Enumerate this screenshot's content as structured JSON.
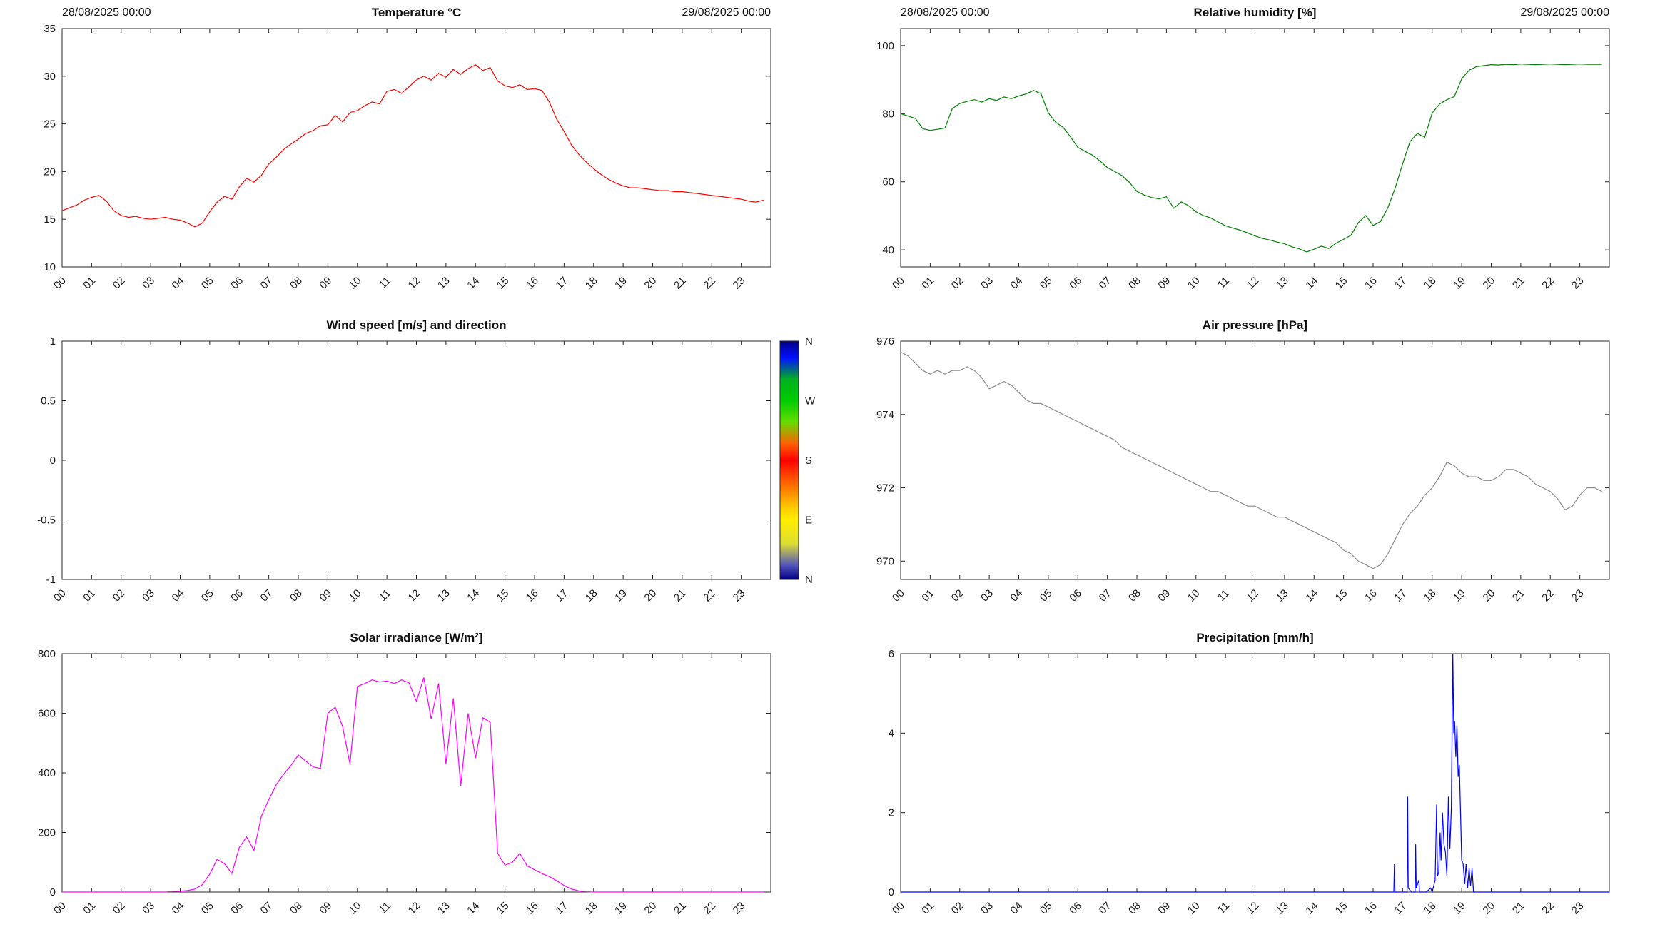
{
  "x_axis": {
    "ticks": [
      0,
      1,
      2,
      3,
      4,
      5,
      6,
      7,
      8,
      9,
      10,
      11,
      12,
      13,
      14,
      15,
      16,
      17,
      18,
      19,
      20,
      21,
      22,
      23
    ],
    "labels": [
      "00",
      "01",
      "02",
      "03",
      "04",
      "05",
      "06",
      "07",
      "08",
      "09",
      "10",
      "11",
      "12",
      "13",
      "14",
      "15",
      "16",
      "17",
      "18",
      "19",
      "20",
      "21",
      "22",
      "23"
    ]
  },
  "chart_data": [
    {
      "id": "temperature",
      "type": "line",
      "title": "Temperature °C",
      "date_left": "28/08/2025 00:00",
      "date_right": "29/08/2025 00:00",
      "color": "#ff0000",
      "xlim": [
        0,
        24
      ],
      "ylim": [
        10,
        35
      ],
      "yticks": [
        10,
        15,
        20,
        25,
        30,
        35
      ],
      "ytick_labels": [
        "10",
        "15",
        "20",
        "25",
        "30",
        "35"
      ],
      "x_start": 0,
      "x_step": 0.25,
      "values": [
        15.9,
        16.2,
        16.5,
        17.0,
        17.3,
        17.5,
        16.9,
        15.9,
        15.4,
        15.2,
        15.3,
        15.1,
        15.0,
        15.1,
        15.2,
        15.0,
        14.9,
        14.6,
        14.2,
        14.6,
        15.8,
        16.8,
        17.4,
        17.1,
        18.4,
        19.3,
        18.9,
        19.6,
        20.8,
        21.5,
        22.3,
        22.9,
        23.4,
        24.0,
        24.3,
        24.8,
        24.9,
        25.9,
        25.2,
        26.2,
        26.4,
        26.9,
        27.3,
        27.1,
        28.4,
        28.6,
        28.2,
        28.9,
        29.6,
        30.0,
        29.6,
        30.3,
        29.9,
        30.7,
        30.2,
        30.8,
        31.2,
        30.6,
        30.9,
        29.5,
        29.0,
        28.8,
        29.1,
        28.6,
        28.7,
        28.5,
        27.3,
        25.5,
        24.2,
        22.8,
        21.8,
        21.0,
        20.3,
        19.7,
        19.2,
        18.8,
        18.5,
        18.3,
        18.3,
        18.2,
        18.1,
        18.0,
        18.0,
        17.9,
        17.9,
        17.8,
        17.7,
        17.6,
        17.5,
        17.4,
        17.3,
        17.2,
        17.1,
        16.9,
        16.8,
        17.0
      ]
    },
    {
      "id": "humidity",
      "type": "line",
      "title": "Relative humidity [%]",
      "date_left": "28/08/2025 00:00",
      "date_right": "29/08/2025 00:00",
      "color": "#008000",
      "xlim": [
        0,
        24
      ],
      "ylim": [
        35,
        105
      ],
      "yticks": [
        40,
        60,
        80,
        100
      ],
      "ytick_labels": [
        "40",
        "60",
        "80",
        "100"
      ],
      "x_start": 0,
      "x_step": 0.25,
      "values": [
        80.0,
        79.3,
        78.6,
        75.6,
        75.1,
        75.4,
        75.8,
        81.5,
        83.0,
        83.6,
        84.1,
        83.4,
        84.4,
        83.9,
        84.9,
        84.4,
        85.2,
        85.8,
        86.8,
        85.9,
        80.2,
        77.5,
        76.0,
        73.2,
        70.1,
        68.9,
        67.8,
        66.1,
        64.2,
        63.0,
        61.8,
        59.8,
        57.2,
        56.1,
        55.4,
        55.0,
        55.6,
        52.2,
        54.1,
        53.0,
        51.2,
        50.1,
        49.4,
        48.2,
        47.1,
        46.4,
        45.8,
        45.0,
        44.1,
        43.4,
        42.9,
        42.3,
        41.8,
        40.9,
        40.3,
        39.4,
        40.2,
        41.1,
        40.4,
        42.0,
        43.1,
        44.3,
        48.0,
        50.1,
        47.2,
        48.3,
        52.4,
        58.2,
        65.3,
        71.8,
        74.2,
        73.1,
        80.2,
        82.8,
        84.1,
        85.0,
        90.2,
        92.8,
        93.8,
        94.1,
        94.4,
        94.3,
        94.5,
        94.4,
        94.6,
        94.5,
        94.4,
        94.5,
        94.6,
        94.5,
        94.4,
        94.5,
        94.6,
        94.5,
        94.5,
        94.5
      ]
    },
    {
      "id": "wind",
      "type": "line",
      "title": "Wind speed [m/s] and direction",
      "color": "#0000ff",
      "xlim": [
        0,
        24
      ],
      "ylim": [
        -1,
        1
      ],
      "yticks": [
        -1,
        -0.5,
        0,
        0.5,
        1
      ],
      "ytick_labels": [
        "-1",
        "-0.5",
        "0",
        "0.5",
        "1"
      ],
      "values": null,
      "colorbar": {
        "labels": [
          "N",
          "W",
          "S",
          "E",
          "N"
        ],
        "gradient": [
          {
            "pos": 0.0,
            "color": "#000085"
          },
          {
            "pos": 0.07,
            "color": "#0010ff"
          },
          {
            "pos": 0.16,
            "color": "#00b020"
          },
          {
            "pos": 0.25,
            "color": "#00cc00"
          },
          {
            "pos": 0.34,
            "color": "#66dd00"
          },
          {
            "pos": 0.43,
            "color": "#ff6000"
          },
          {
            "pos": 0.5,
            "color": "#ff0000"
          },
          {
            "pos": 0.58,
            "color": "#ff5500"
          },
          {
            "pos": 0.7,
            "color": "#ffcc00"
          },
          {
            "pos": 0.75,
            "color": "#ffee00"
          },
          {
            "pos": 0.85,
            "color": "#dddd33"
          },
          {
            "pos": 0.94,
            "color": "#5555bb"
          },
          {
            "pos": 1.0,
            "color": "#000085"
          }
        ]
      }
    },
    {
      "id": "pressure",
      "type": "line",
      "title": "Air pressure [hPa]",
      "color": "#8a8a8a",
      "xlim": [
        0,
        24
      ],
      "ylim": [
        969.5,
        976
      ],
      "yticks": [
        970,
        972,
        974,
        976
      ],
      "ytick_labels": [
        "970",
        "972",
        "974",
        "976"
      ],
      "x_start": 0,
      "x_step": 0.25,
      "values": [
        975.7,
        975.6,
        975.4,
        975.2,
        975.1,
        975.2,
        975.1,
        975.2,
        975.2,
        975.3,
        975.2,
        975.0,
        974.7,
        974.8,
        974.9,
        974.8,
        974.6,
        974.4,
        974.3,
        974.3,
        974.2,
        974.1,
        974.0,
        973.9,
        973.8,
        973.7,
        973.6,
        973.5,
        973.4,
        973.3,
        973.1,
        973.0,
        972.9,
        972.8,
        972.7,
        972.6,
        972.5,
        972.4,
        972.3,
        972.2,
        972.1,
        972.0,
        971.9,
        971.9,
        971.8,
        971.7,
        971.6,
        971.5,
        971.5,
        971.4,
        971.3,
        971.2,
        971.2,
        971.1,
        971.0,
        970.9,
        970.8,
        970.7,
        970.6,
        970.5,
        970.3,
        970.2,
        970.0,
        969.9,
        969.8,
        969.9,
        970.2,
        970.6,
        971.0,
        971.3,
        971.5,
        971.8,
        972.0,
        972.3,
        972.7,
        972.6,
        972.4,
        972.3,
        972.3,
        972.2,
        972.2,
        972.3,
        972.5,
        972.5,
        972.4,
        972.3,
        972.1,
        972.0,
        971.9,
        971.7,
        971.4,
        971.5,
        971.8,
        972.0,
        972.0,
        971.9
      ]
    },
    {
      "id": "solar",
      "type": "line",
      "title": "Solar irradiance [W/m²]",
      "color": "#ff00ff",
      "xlim": [
        0,
        24
      ],
      "ylim": [
        0,
        800
      ],
      "yticks": [
        0,
        200,
        400,
        600,
        800
      ],
      "ytick_labels": [
        "0",
        "200",
        "400",
        "600",
        "800"
      ],
      "x_start": 0,
      "x_step": 0.25,
      "values": [
        0,
        0,
        0,
        0,
        0,
        0,
        0,
        0,
        0,
        0,
        0,
        0,
        0,
        0,
        0,
        2,
        3,
        5,
        10,
        25,
        60,
        110,
        95,
        62,
        150,
        185,
        140,
        255,
        310,
        360,
        395,
        425,
        460,
        440,
        420,
        415,
        600,
        620,
        555,
        430,
        690,
        700,
        712,
        705,
        708,
        700,
        712,
        702,
        640,
        720,
        580,
        700,
        430,
        650,
        355,
        600,
        450,
        585,
        570,
        130,
        90,
        100,
        130,
        88,
        75,
        62,
        52,
        38,
        22,
        10,
        4,
        1,
        0,
        0,
        0,
        0,
        0,
        0,
        0,
        0,
        0,
        0,
        0,
        0,
        0,
        0,
        0,
        0,
        0,
        0,
        0,
        0,
        0,
        0,
        0,
        0
      ]
    },
    {
      "id": "precipitation",
      "type": "line",
      "title": "Precipitation [mm/h]",
      "color": "#0000ff",
      "xlim": [
        0,
        24
      ],
      "ylim": [
        0,
        6
      ],
      "yticks": [
        0,
        2,
        4,
        6
      ],
      "ytick_labels": [
        "0",
        "2",
        "4",
        "6"
      ],
      "x": [
        0,
        16.4,
        16.7,
        16.72,
        16.74,
        16.9,
        17.15,
        17.17,
        17.19,
        17.3,
        17.42,
        17.44,
        17.46,
        17.55,
        17.57,
        17.8,
        17.95,
        18.0,
        18.1,
        18.15,
        18.18,
        18.22,
        18.27,
        18.3,
        18.35,
        18.4,
        18.45,
        18.5,
        18.55,
        18.6,
        18.65,
        18.7,
        18.73,
        18.76,
        18.8,
        18.84,
        18.88,
        18.92,
        18.96,
        19.0,
        19.05,
        19.1,
        19.15,
        19.2,
        19.25,
        19.3,
        19.35,
        19.4,
        19.5,
        24
      ],
      "values": [
        0,
        0,
        0,
        0.7,
        0,
        0,
        0,
        2.4,
        0.1,
        0,
        0,
        1.2,
        0.1,
        0.3,
        0,
        0,
        0.1,
        0,
        0.3,
        2.2,
        0.4,
        0.5,
        1.5,
        0.8,
        2.0,
        1.2,
        1.0,
        0.4,
        2.4,
        1.1,
        2.1,
        6.0,
        4.0,
        4.3,
        3.4,
        4.2,
        2.9,
        3.2,
        2.0,
        0.8,
        0.7,
        0.2,
        0.7,
        0.1,
        0.6,
        0.15,
        0.6,
        0,
        0,
        0
      ]
    }
  ]
}
